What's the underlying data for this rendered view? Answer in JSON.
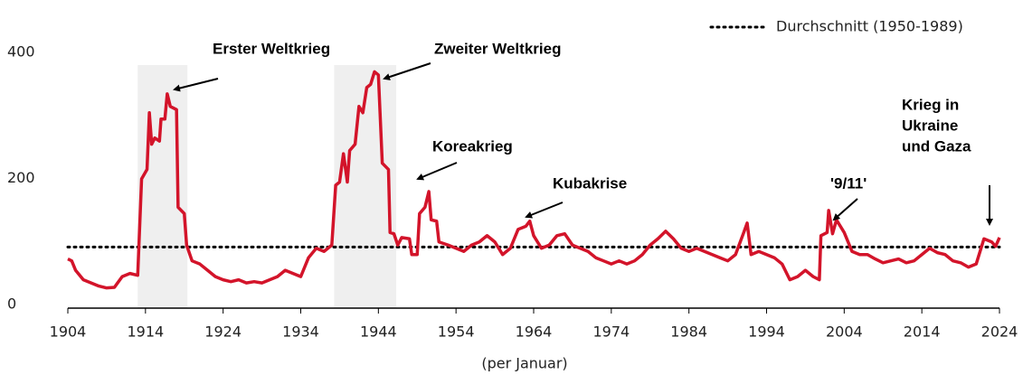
{
  "chart_data": {
    "type": "line",
    "legend": "Durchschnitt (1950-1989)",
    "xlabel": "(per Januar)",
    "average": 97,
    "average_color": "#000000",
    "shaded": [
      [
        1913,
        1919.4
      ],
      [
        1938.3,
        1946.3
      ]
    ],
    "shade_color": "#efefef",
    "xlim": [
      1904,
      2024
    ],
    "xticks": [
      1904,
      1914,
      1924,
      1934,
      1944,
      1954,
      1964,
      1974,
      1984,
      1994,
      2004,
      2014,
      2024
    ],
    "ylim": [
      0,
      400
    ],
    "yticks": [
      0,
      200,
      400
    ],
    "annotations": [
      {
        "text": [
          "Erster Weltkrieg"
        ]
      },
      {
        "text": [
          "Zweiter Weltkrieg"
        ]
      },
      {
        "text": [
          "Koreakrieg"
        ]
      },
      {
        "text": [
          "Kubakrise"
        ]
      },
      {
        "text": [
          "'9/11'"
        ]
      },
      {
        "text": [
          "Krieg in",
          "Ukraine",
          "und Gaza"
        ]
      }
    ],
    "series": [
      {
        "color": "#d3142a",
        "x": [
          1904,
          1904.5,
          1905,
          1906,
          1907,
          1908,
          1909,
          1910,
          1911,
          1912,
          1913,
          1913.5,
          1914.2,
          1914.5,
          1914.8,
          1915.2,
          1915.8,
          1916,
          1916.5,
          1916.8,
          1917.2,
          1918,
          1918.2,
          1919,
          1919.3,
          1920,
          1921,
          1922,
          1923,
          1924,
          1925,
          1926,
          1927,
          1928,
          1929,
          1930,
          1931,
          1932,
          1933,
          1934,
          1935,
          1936,
          1937,
          1938,
          1938.5,
          1939,
          1939.5,
          1940,
          1940.3,
          1941,
          1941.5,
          1942,
          1942.5,
          1943,
          1943.5,
          1944,
          1944.5,
          1945.3,
          1945.5,
          1946,
          1946.5,
          1947,
          1948,
          1948.3,
          1949,
          1949.3,
          1950,
          1950.5,
          1950.8,
          1951.5,
          1951.8,
          1953,
          1954,
          1955,
          1956,
          1957,
          1958,
          1959,
          1960,
          1961,
          1962,
          1963,
          1963.5,
          1964,
          1965,
          1966,
          1967,
          1968,
          1969,
          1970,
          1971,
          1972,
          1973,
          1974,
          1975,
          1976,
          1977,
          1978,
          1979,
          1980,
          1981,
          1982,
          1983,
          1984,
          1985,
          1986,
          1987,
          1988,
          1989,
          1990,
          1991,
          1991.5,
          1992,
          1993,
          1994,
          1995,
          1996,
          1997,
          1998,
          1999,
          2000,
          2000.8,
          2001,
          2001.8,
          2002,
          2002.5,
          2003,
          2004,
          2005,
          2006,
          2007,
          2008,
          2009,
          2010,
          2011,
          2012,
          2013,
          2014,
          2015,
          2016,
          2017,
          2018,
          2019,
          2020,
          2021,
          2022,
          2023,
          2023.5,
          2024
        ],
        "values": [
          78,
          75,
          60,
          45,
          40,
          35,
          32,
          33,
          50,
          55,
          52,
          205,
          220,
          310,
          260,
          270,
          265,
          300,
          300,
          340,
          320,
          315,
          160,
          150,
          100,
          75,
          70,
          60,
          50,
          45,
          42,
          45,
          40,
          42,
          40,
          45,
          50,
          60,
          55,
          50,
          80,
          95,
          90,
          100,
          195,
          200,
          245,
          200,
          250,
          260,
          320,
          310,
          350,
          355,
          375,
          370,
          230,
          220,
          120,
          118,
          100,
          112,
          110,
          85,
          85,
          150,
          160,
          185,
          140,
          138,
          105,
          100,
          95,
          90,
          100,
          105,
          115,
          105,
          85,
          95,
          125,
          130,
          138,
          115,
          95,
          100,
          115,
          118,
          100,
          95,
          90,
          80,
          75,
          70,
          75,
          70,
          75,
          85,
          100,
          110,
          122,
          110,
          95,
          90,
          95,
          90,
          85,
          80,
          75,
          85,
          118,
          135,
          85,
          90,
          85,
          80,
          70,
          45,
          50,
          60,
          50,
          45,
          115,
          120,
          155,
          118,
          140,
          120,
          90,
          85,
          85,
          78,
          72,
          75,
          78,
          72,
          75,
          85,
          95,
          88,
          85,
          75,
          72,
          65,
          70,
          110,
          105,
          98,
          112
        ]
      }
    ]
  }
}
